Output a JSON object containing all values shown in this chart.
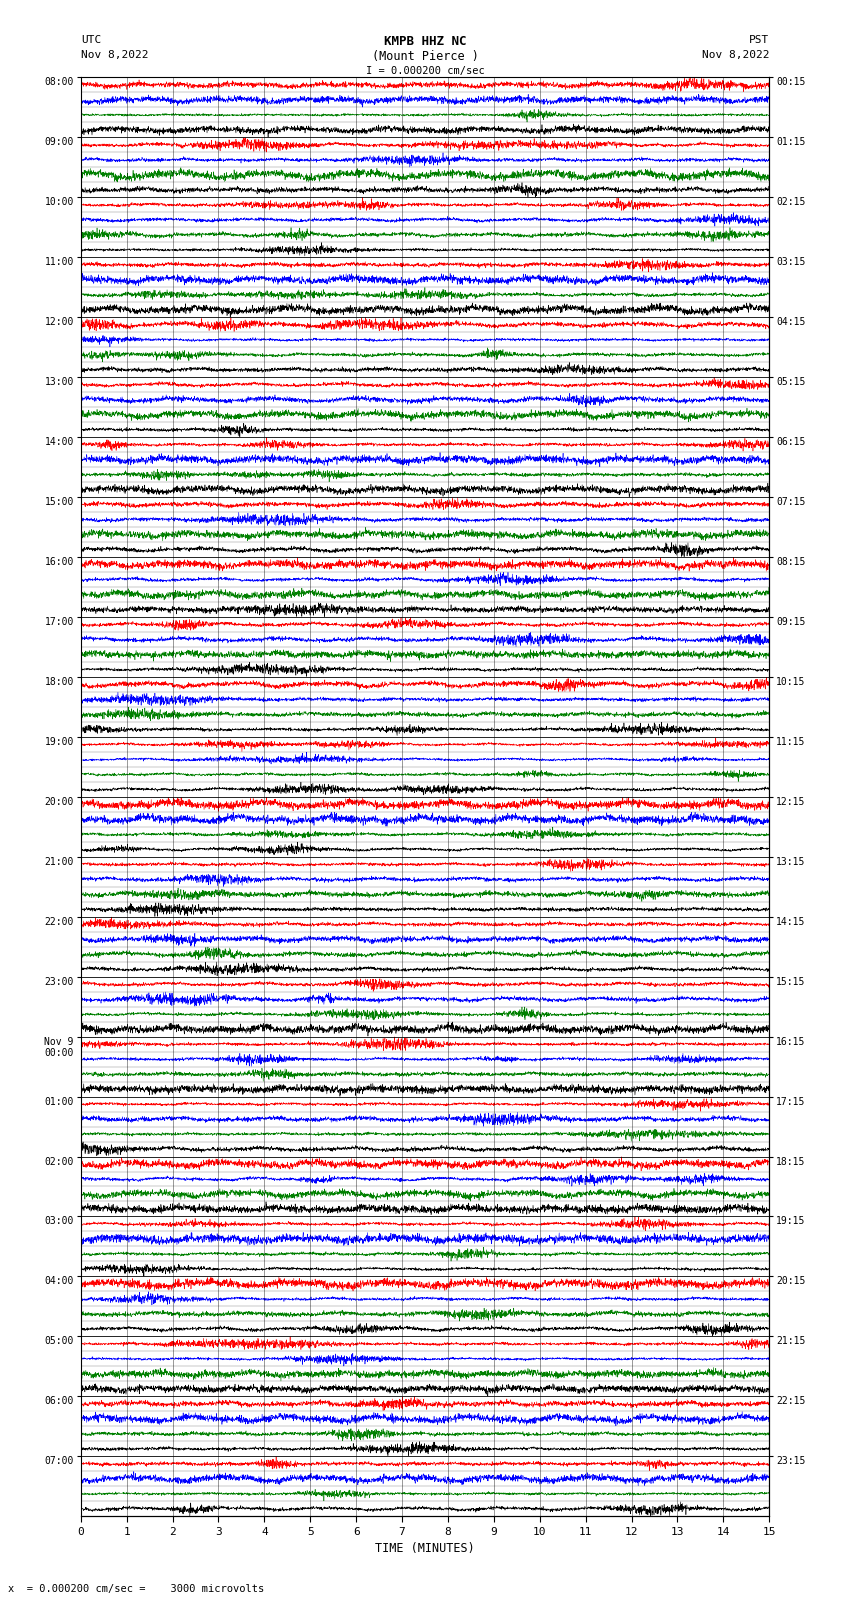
{
  "title_line1": "KMPB HHZ NC",
  "title_line2": "(Mount Pierce )",
  "scale_text": "I = 0.000200 cm/sec",
  "left_label1": "UTC",
  "left_label2": "Nov 8,2022",
  "right_label1": "PST",
  "right_label2": "Nov 8,2022",
  "bottom_label": "TIME (MINUTES)",
  "bottom_note": "x  = 0.000200 cm/sec =    3000 microvolts",
  "utc_times": [
    "08:00",
    "09:00",
    "10:00",
    "11:00",
    "12:00",
    "13:00",
    "14:00",
    "15:00",
    "16:00",
    "17:00",
    "18:00",
    "19:00",
    "20:00",
    "21:00",
    "22:00",
    "23:00",
    "Nov 9\n00:00",
    "01:00",
    "02:00",
    "03:00",
    "04:00",
    "05:00",
    "06:00",
    "07:00"
  ],
  "pst_times": [
    "00:15",
    "01:15",
    "02:15",
    "03:15",
    "04:15",
    "05:15",
    "06:15",
    "07:15",
    "08:15",
    "09:15",
    "10:15",
    "11:15",
    "12:15",
    "13:15",
    "14:15",
    "15:15",
    "16:15",
    "17:15",
    "18:15",
    "19:15",
    "20:15",
    "21:15",
    "22:15",
    "23:15"
  ],
  "n_rows": 24,
  "n_sub_rows": 4,
  "minutes_per_row": 15,
  "colors": [
    "red",
    "blue",
    "green",
    "black"
  ],
  "figure_bg": "white",
  "plot_bg": "white",
  "seed": 42
}
